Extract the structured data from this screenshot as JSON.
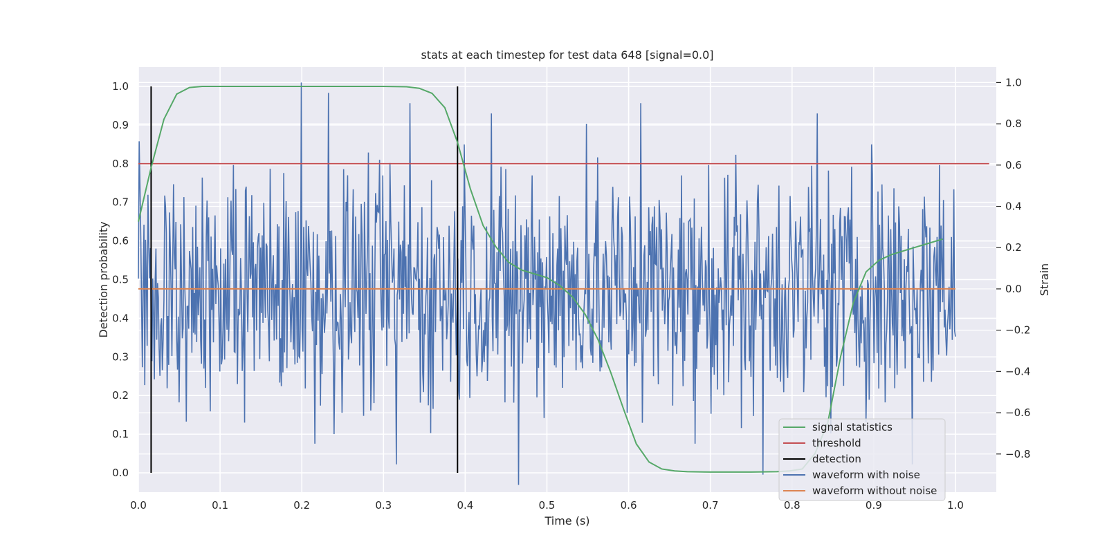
{
  "chart_data": {
    "type": "line",
    "title": "stats at each timestep for test data 648 [signal=0.0]",
    "xlabel": "Time (s)",
    "ylabel": "Detection probability",
    "y2label": "Strain",
    "xlim": [
      0.0,
      1.05
    ],
    "ylim": [
      -0.05,
      1.05
    ],
    "y2lim": [
      -0.985,
      1.075
    ],
    "xticks": [
      "0.0",
      "0.1",
      "0.2",
      "0.3",
      "0.4",
      "0.5",
      "0.6",
      "0.7",
      "0.8",
      "0.9",
      "1.0"
    ],
    "yticks": [
      "0.0",
      "0.1",
      "0.2",
      "0.3",
      "0.4",
      "0.5",
      "0.6",
      "0.7",
      "0.8",
      "0.9",
      "1.0"
    ],
    "y2ticks": [
      "−0.8",
      "−0.6",
      "−0.4",
      "−0.2",
      "0.0",
      "0.2",
      "0.4",
      "0.6",
      "0.8",
      "1.0"
    ],
    "grid": true,
    "legend_position": "lower-right",
    "background": "#eaeaf2",
    "series": [
      {
        "name": "signal statistics",
        "color": "#55a868",
        "axis": "left",
        "x": [
          0.0,
          0.0156,
          0.0313,
          0.0469,
          0.0625,
          0.0781,
          0.1,
          0.15,
          0.2,
          0.25,
          0.3,
          0.3281,
          0.3438,
          0.3594,
          0.375,
          0.3906,
          0.4063,
          0.4219,
          0.4375,
          0.4531,
          0.4688,
          0.4844,
          0.5,
          0.5156,
          0.5313,
          0.5469,
          0.5625,
          0.5781,
          0.5938,
          0.6094,
          0.625,
          0.6406,
          0.6563,
          0.6719,
          0.7,
          0.75,
          0.7813,
          0.7969,
          0.8125,
          0.8281,
          0.8438,
          0.8594,
          0.875,
          0.8906,
          0.9063,
          0.9219,
          0.9375,
          0.9531,
          0.9688,
          0.9844
        ],
        "y": [
          0.65,
          0.79,
          0.915,
          0.98,
          0.997,
          1.0,
          1.0,
          1.0,
          1.0,
          1.0,
          1.0,
          0.999,
          0.995,
          0.982,
          0.945,
          0.855,
          0.735,
          0.64,
          0.585,
          0.545,
          0.525,
          0.515,
          0.505,
          0.485,
          0.455,
          0.41,
          0.345,
          0.26,
          0.165,
          0.075,
          0.028,
          0.01,
          0.005,
          0.003,
          0.002,
          0.002,
          0.003,
          0.005,
          0.01,
          0.05,
          0.13,
          0.3,
          0.44,
          0.52,
          0.55,
          0.565,
          0.575,
          0.585,
          0.595,
          0.605
        ]
      },
      {
        "name": "threshold",
        "color": "#c44e52",
        "axis": "left",
        "x": [
          0.0,
          1.0413
        ],
        "y": [
          0.8,
          0.8
        ]
      },
      {
        "name": "detection",
        "color": "#000000",
        "axis": "left",
        "x": [
          0.0156,
          0.0156,
          0.3906,
          0.3906
        ],
        "y": [
          0.0,
          1.0,
          0.0,
          1.0
        ],
        "segments": [
          [
            0.0156,
            0.0,
            1.0
          ],
          [
            0.3906,
            0.0,
            1.0
          ]
        ]
      },
      {
        "name": "waveform with noise",
        "color": "#4c72b0",
        "axis": "right",
        "x_range": [
          0.0,
          1.0
        ],
        "n_points": 1024,
        "description_free_sample": [
          0.05,
          -0.35,
          0.4,
          -0.55,
          0.3,
          0.25,
          -0.4,
          0.6,
          0.0,
          0.2,
          -0.25,
          0.1,
          1.0,
          -0.75,
          0.95,
          -0.6,
          0.35,
          -0.2,
          0.55,
          -0.85,
          0.9,
          -0.5,
          0.3,
          -0.45,
          0.7,
          -0.3,
          0.85,
          -0.55,
          -0.95,
          0.55,
          0.0,
          0.45,
          -0.25,
          0.8,
          -0.4,
          0.25,
          -0.6,
          0.9,
          0.4,
          -0.3,
          0.55,
          -0.75,
          0.6,
          -0.2,
          0.65,
          -0.35,
          -0.9,
          0.3,
          0.45,
          -0.5,
          0.85,
          -0.7,
          0.35,
          -0.15,
          0.7,
          -0.55,
          0.4,
          -0.85,
          0.25,
          0.6
        ]
      },
      {
        "name": "waveform without noise",
        "color": "#dd8452",
        "axis": "right",
        "x": [
          0.0,
          1.0
        ],
        "y": [
          0.0,
          0.0
        ]
      }
    ]
  }
}
